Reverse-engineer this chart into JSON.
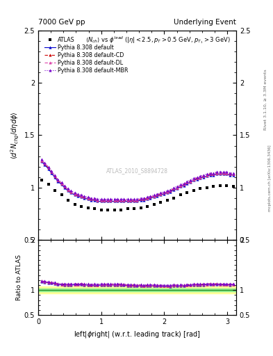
{
  "title_left": "7000 GeV pp",
  "title_right": "Underlying Event",
  "watermark": "ATLAS_2010_S8894728",
  "ylim_main": [
    0.5,
    2.5
  ],
  "ylim_ratio": [
    0.5,
    2.0
  ],
  "xlim": [
    0,
    3.14159
  ],
  "atlas_x": [
    0.05,
    0.16,
    0.26,
    0.37,
    0.47,
    0.58,
    0.68,
    0.79,
    0.89,
    1.0,
    1.1,
    1.21,
    1.31,
    1.42,
    1.52,
    1.63,
    1.73,
    1.84,
    1.94,
    2.05,
    2.15,
    2.26,
    2.36,
    2.47,
    2.57,
    2.68,
    2.78,
    2.89,
    2.99,
    3.1
  ],
  "atlas_y": [
    1.07,
    1.03,
    0.97,
    0.93,
    0.88,
    0.84,
    0.82,
    0.81,
    0.8,
    0.79,
    0.79,
    0.79,
    0.79,
    0.8,
    0.8,
    0.81,
    0.82,
    0.84,
    0.86,
    0.88,
    0.9,
    0.93,
    0.95,
    0.97,
    0.99,
    1.0,
    1.01,
    1.02,
    1.02,
    1.01
  ],
  "pythia_x": [
    0.05,
    0.1,
    0.16,
    0.21,
    0.26,
    0.31,
    0.37,
    0.42,
    0.47,
    0.52,
    0.58,
    0.63,
    0.68,
    0.73,
    0.79,
    0.84,
    0.89,
    0.94,
    1.0,
    1.05,
    1.1,
    1.15,
    1.21,
    1.26,
    1.31,
    1.36,
    1.42,
    1.47,
    1.52,
    1.57,
    1.63,
    1.68,
    1.73,
    1.78,
    1.84,
    1.89,
    1.94,
    1.99,
    2.05,
    2.1,
    2.15,
    2.2,
    2.26,
    2.31,
    2.36,
    2.41,
    2.47,
    2.52,
    2.57,
    2.62,
    2.68,
    2.73,
    2.78,
    2.83,
    2.89,
    2.94,
    2.99,
    3.04,
    3.1
  ],
  "pythia_default_y": [
    1.25,
    1.22,
    1.18,
    1.14,
    1.1,
    1.06,
    1.03,
    1.0,
    0.97,
    0.95,
    0.93,
    0.92,
    0.91,
    0.9,
    0.89,
    0.88,
    0.88,
    0.87,
    0.87,
    0.87,
    0.87,
    0.87,
    0.87,
    0.87,
    0.87,
    0.87,
    0.87,
    0.87,
    0.87,
    0.87,
    0.88,
    0.88,
    0.89,
    0.9,
    0.91,
    0.92,
    0.93,
    0.94,
    0.95,
    0.96,
    0.98,
    0.99,
    1.01,
    1.02,
    1.04,
    1.05,
    1.07,
    1.08,
    1.09,
    1.1,
    1.11,
    1.12,
    1.12,
    1.13,
    1.13,
    1.13,
    1.13,
    1.12,
    1.12
  ],
  "pythia_cd_y": [
    1.26,
    1.23,
    1.19,
    1.15,
    1.11,
    1.07,
    1.04,
    1.01,
    0.98,
    0.96,
    0.94,
    0.93,
    0.92,
    0.91,
    0.9,
    0.89,
    0.89,
    0.88,
    0.88,
    0.88,
    0.88,
    0.88,
    0.88,
    0.88,
    0.88,
    0.88,
    0.88,
    0.88,
    0.88,
    0.88,
    0.89,
    0.89,
    0.9,
    0.91,
    0.92,
    0.93,
    0.94,
    0.95,
    0.96,
    0.97,
    0.99,
    1.0,
    1.02,
    1.03,
    1.05,
    1.06,
    1.08,
    1.09,
    1.1,
    1.11,
    1.12,
    1.13,
    1.13,
    1.14,
    1.14,
    1.14,
    1.14,
    1.13,
    1.13
  ],
  "pythia_dl_y": [
    1.26,
    1.23,
    1.19,
    1.15,
    1.11,
    1.07,
    1.04,
    1.01,
    0.98,
    0.96,
    0.94,
    0.93,
    0.92,
    0.91,
    0.9,
    0.89,
    0.89,
    0.88,
    0.88,
    0.88,
    0.88,
    0.88,
    0.88,
    0.88,
    0.88,
    0.88,
    0.88,
    0.88,
    0.88,
    0.88,
    0.89,
    0.89,
    0.9,
    0.91,
    0.92,
    0.93,
    0.94,
    0.95,
    0.96,
    0.97,
    0.99,
    1.0,
    1.02,
    1.03,
    1.05,
    1.06,
    1.08,
    1.09,
    1.1,
    1.11,
    1.12,
    1.13,
    1.13,
    1.14,
    1.14,
    1.14,
    1.14,
    1.13,
    1.13
  ],
  "pythia_mbr_y": [
    1.27,
    1.24,
    1.2,
    1.16,
    1.12,
    1.08,
    1.05,
    1.02,
    0.99,
    0.97,
    0.95,
    0.94,
    0.93,
    0.92,
    0.91,
    0.9,
    0.9,
    0.89,
    0.89,
    0.89,
    0.89,
    0.89,
    0.89,
    0.89,
    0.89,
    0.89,
    0.89,
    0.89,
    0.89,
    0.89,
    0.9,
    0.9,
    0.91,
    0.92,
    0.93,
    0.94,
    0.95,
    0.96,
    0.97,
    0.98,
    1.0,
    1.01,
    1.03,
    1.04,
    1.06,
    1.07,
    1.09,
    1.1,
    1.11,
    1.12,
    1.13,
    1.14,
    1.14,
    1.15,
    1.15,
    1.15,
    1.15,
    1.14,
    1.14
  ],
  "background_color": "#ffffff",
  "ratio_green_band": [
    0.97,
    1.03
  ],
  "ratio_yellow_band": [
    0.93,
    1.07
  ],
  "ratio_line_color": "#228b22"
}
